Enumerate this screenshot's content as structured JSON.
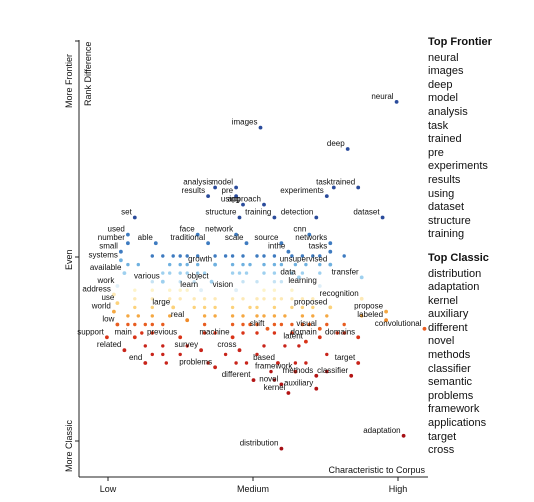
{
  "chart_data": {
    "type": "scatter",
    "y_axis": {
      "label": "Rank Difference",
      "tick_labels": [
        "More Frontier",
        "Even",
        "More Classic"
      ]
    },
    "x_axis": {
      "label": "Characteristic to Corpus",
      "tick_labels": [
        "Low",
        "Medium",
        "High"
      ]
    },
    "labeled_points": [
      {
        "term": "neural",
        "x": 0.91,
        "y": 0.86,
        "color": "#2a4b9b"
      },
      {
        "term": "images",
        "x": 0.52,
        "y": 0.8,
        "color": "#2a4b9b"
      },
      {
        "term": "deep",
        "x": 0.77,
        "y": 0.75,
        "color": "#2a4b9b"
      },
      {
        "term": "analysis",
        "x": 0.39,
        "y": 0.66,
        "color": "#2a4b9b"
      },
      {
        "term": "model",
        "x": 0.45,
        "y": 0.66,
        "color": "#2a4b9b"
      },
      {
        "term": "task",
        "x": 0.73,
        "y": 0.66,
        "color": "#2a4b9b"
      },
      {
        "term": "trained",
        "x": 0.8,
        "y": 0.66,
        "color": "#2a4b9b"
      },
      {
        "term": "results",
        "x": 0.37,
        "y": 0.64,
        "color": "#2a4b9b"
      },
      {
        "term": "pre",
        "x": 0.45,
        "y": 0.64,
        "color": "#2a4b9b"
      },
      {
        "term": "experiments",
        "x": 0.71,
        "y": 0.64,
        "color": "#2a4b9b"
      },
      {
        "term": "using",
        "x": 0.47,
        "y": 0.62,
        "color": "#2a4b9b"
      },
      {
        "term": "approach",
        "x": 0.53,
        "y": 0.62,
        "color": "#2a4b9b"
      },
      {
        "term": "set",
        "x": 0.16,
        "y": 0.59,
        "color": "#2a4b9b"
      },
      {
        "term": "structure",
        "x": 0.46,
        "y": 0.59,
        "color": "#2a4b9b"
      },
      {
        "term": "training",
        "x": 0.56,
        "y": 0.59,
        "color": "#2a4b9b"
      },
      {
        "term": "detection",
        "x": 0.68,
        "y": 0.59,
        "color": "#2a4b9b"
      },
      {
        "term": "dataset",
        "x": 0.87,
        "y": 0.59,
        "color": "#2a4b9b"
      },
      {
        "term": "used",
        "x": 0.14,
        "y": 0.55,
        "color": "#3e7bc0"
      },
      {
        "term": "face",
        "x": 0.34,
        "y": 0.55,
        "color": "#3e7bc0"
      },
      {
        "term": "network",
        "x": 0.45,
        "y": 0.55,
        "color": "#3e7bc0"
      },
      {
        "term": "cnn",
        "x": 0.66,
        "y": 0.55,
        "color": "#3e7bc0"
      },
      {
        "term": "number",
        "x": 0.14,
        "y": 0.53,
        "color": "#3e7bc0"
      },
      {
        "term": "able",
        "x": 0.22,
        "y": 0.53,
        "color": "#3e7bc0"
      },
      {
        "term": "traditional",
        "x": 0.37,
        "y": 0.53,
        "color": "#3e7bc0"
      },
      {
        "term": "scale",
        "x": 0.48,
        "y": 0.53,
        "color": "#3e7bc0"
      },
      {
        "term": "source",
        "x": 0.58,
        "y": 0.53,
        "color": "#3e7bc0"
      },
      {
        "term": "networks",
        "x": 0.72,
        "y": 0.53,
        "color": "#3e7bc0"
      },
      {
        "term": "small",
        "x": 0.12,
        "y": 0.51,
        "color": "#3e7bc0"
      },
      {
        "term": "inthe",
        "x": 0.6,
        "y": 0.51,
        "color": "#3e7bc0"
      },
      {
        "term": "tasks",
        "x": 0.72,
        "y": 0.51,
        "color": "#3e7bc0"
      },
      {
        "term": "systems",
        "x": 0.12,
        "y": 0.49,
        "color": "#6fb1e0"
      },
      {
        "term": "growth",
        "x": 0.39,
        "y": 0.48,
        "color": "#6fb1e0"
      },
      {
        "term": "unsupervised",
        "x": 0.72,
        "y": 0.48,
        "color": "#6fb1e0"
      },
      {
        "term": "available",
        "x": 0.13,
        "y": 0.46,
        "color": "#9ed0ef"
      },
      {
        "term": "various",
        "x": 0.24,
        "y": 0.44,
        "color": "#9ed0ef"
      },
      {
        "term": "object",
        "x": 0.38,
        "y": 0.44,
        "color": "#9ed0ef"
      },
      {
        "term": "data",
        "x": 0.63,
        "y": 0.45,
        "color": "#9ed0ef"
      },
      {
        "term": "transfer",
        "x": 0.81,
        "y": 0.45,
        "color": "#9ed0ef"
      },
      {
        "term": "work",
        "x": 0.11,
        "y": 0.43,
        "color": "#dfeff8"
      },
      {
        "term": "learn",
        "x": 0.35,
        "y": 0.42,
        "color": "#dfeff8"
      },
      {
        "term": "vision",
        "x": 0.45,
        "y": 0.42,
        "color": "#dfeff8"
      },
      {
        "term": "learning",
        "x": 0.69,
        "y": 0.43,
        "color": "#dfeff8"
      },
      {
        "term": "address",
        "x": 0.1,
        "y": 0.41,
        "color": "#fde9b5"
      },
      {
        "term": "recognition",
        "x": 0.81,
        "y": 0.4,
        "color": "#fde9b5"
      },
      {
        "term": "use",
        "x": 0.11,
        "y": 0.39,
        "color": "#fcd27b"
      },
      {
        "term": "large",
        "x": 0.27,
        "y": 0.38,
        "color": "#fcd27b"
      },
      {
        "term": "proposed",
        "x": 0.72,
        "y": 0.38,
        "color": "#fcd27b"
      },
      {
        "term": "world",
        "x": 0.1,
        "y": 0.37,
        "color": "#f5a842"
      },
      {
        "term": "propose",
        "x": 0.88,
        "y": 0.37,
        "color": "#f5a842"
      },
      {
        "term": "real",
        "x": 0.31,
        "y": 0.35,
        "color": "#f08a28"
      },
      {
        "term": "labeled",
        "x": 0.88,
        "y": 0.35,
        "color": "#f08a28"
      },
      {
        "term": "low",
        "x": 0.11,
        "y": 0.34,
        "color": "#e85d20"
      },
      {
        "term": "shift",
        "x": 0.54,
        "y": 0.33,
        "color": "#e85d20"
      },
      {
        "term": "visual",
        "x": 0.69,
        "y": 0.33,
        "color": "#e85d20"
      },
      {
        "term": "convolutional",
        "x": 0.99,
        "y": 0.33,
        "color": "#e85d20"
      },
      {
        "term": "support",
        "x": 0.08,
        "y": 0.31,
        "color": "#d93418"
      },
      {
        "term": "main",
        "x": 0.16,
        "y": 0.31,
        "color": "#d93418"
      },
      {
        "term": "previous",
        "x": 0.29,
        "y": 0.31,
        "color": "#d93418"
      },
      {
        "term": "machine",
        "x": 0.44,
        "y": 0.31,
        "color": "#d93418"
      },
      {
        "term": "domain",
        "x": 0.69,
        "y": 0.31,
        "color": "#d93418"
      },
      {
        "term": "domains",
        "x": 0.8,
        "y": 0.31,
        "color": "#d93418"
      },
      {
        "term": "latent",
        "x": 0.65,
        "y": 0.3,
        "color": "#d93418"
      },
      {
        "term": "related",
        "x": 0.13,
        "y": 0.28,
        "color": "#c8241a"
      },
      {
        "term": "survey",
        "x": 0.35,
        "y": 0.28,
        "color": "#c8241a"
      },
      {
        "term": "cross",
        "x": 0.46,
        "y": 0.28,
        "color": "#c8241a"
      },
      {
        "term": "end",
        "x": 0.19,
        "y": 0.25,
        "color": "#c8241a"
      },
      {
        "term": "based",
        "x": 0.57,
        "y": 0.25,
        "color": "#c8241a"
      },
      {
        "term": "target",
        "x": 0.8,
        "y": 0.25,
        "color": "#c8241a"
      },
      {
        "term": "problems",
        "x": 0.39,
        "y": 0.24,
        "color": "#c8241a"
      },
      {
        "term": "framework",
        "x": 0.62,
        "y": 0.23,
        "color": "#c8241a"
      },
      {
        "term": "methods",
        "x": 0.68,
        "y": 0.22,
        "color": "#b31414"
      },
      {
        "term": "classifier",
        "x": 0.78,
        "y": 0.22,
        "color": "#b31414"
      },
      {
        "term": "different",
        "x": 0.5,
        "y": 0.21,
        "color": "#b31414"
      },
      {
        "term": "novel",
        "x": 0.58,
        "y": 0.2,
        "color": "#b31414"
      },
      {
        "term": "auxiliary",
        "x": 0.68,
        "y": 0.19,
        "color": "#b31414"
      },
      {
        "term": "kernel",
        "x": 0.6,
        "y": 0.18,
        "color": "#b31414"
      },
      {
        "term": "adaptation",
        "x": 0.93,
        "y": 0.08,
        "color": "#a50f15"
      },
      {
        "term": "distribution",
        "x": 0.58,
        "y": 0.05,
        "color": "#a50f15"
      }
    ],
    "dot_rows": [
      {
        "y": 0.5,
        "color": "#3e7bc0",
        "x": [
          0.21,
          0.24,
          0.27,
          0.29,
          0.31,
          0.34,
          0.39,
          0.42,
          0.44,
          0.47,
          0.51,
          0.53,
          0.56,
          0.61,
          0.64,
          0.67,
          0.69,
          0.76
        ]
      },
      {
        "y": 0.48,
        "color": "#6fb1e0",
        "x": [
          0.14,
          0.17,
          0.26,
          0.29,
          0.31,
          0.34,
          0.44,
          0.47,
          0.49,
          0.53,
          0.56,
          0.58,
          0.62,
          0.65,
          0.69
        ]
      },
      {
        "y": 0.46,
        "color": "#9ed0ef",
        "x": [
          0.24,
          0.26,
          0.29,
          0.31,
          0.34,
          0.36,
          0.44,
          0.46,
          0.48,
          0.53,
          0.56,
          0.61,
          0.64,
          0.69
        ]
      },
      {
        "y": 0.44,
        "color": "#c6e3f4",
        "x": [
          0.21,
          0.29,
          0.33,
          0.47,
          0.51,
          0.56,
          0.58
        ]
      },
      {
        "y": 0.42,
        "color": "#fdf3c9",
        "x": [
          0.16,
          0.21,
          0.26,
          0.29,
          0.31,
          0.53,
          0.56,
          0.61
        ]
      },
      {
        "y": 0.4,
        "color": "#fde9b5",
        "x": [
          0.16,
          0.21,
          0.26,
          0.29,
          0.33,
          0.36,
          0.39,
          0.44,
          0.47,
          0.51,
          0.53,
          0.56,
          0.58,
          0.61,
          0.64,
          0.67
        ]
      },
      {
        "y": 0.38,
        "color": "#fcd27b",
        "x": [
          0.16,
          0.21,
          0.33,
          0.36,
          0.39,
          0.44,
          0.49,
          0.51,
          0.56,
          0.61,
          0.64,
          0.67
        ]
      },
      {
        "y": 0.36,
        "color": "#f5a842",
        "x": [
          0.14,
          0.17,
          0.21,
          0.26,
          0.36,
          0.39,
          0.44,
          0.47,
          0.51,
          0.53,
          0.56,
          0.59,
          0.64,
          0.67,
          0.71,
          0.81
        ]
      },
      {
        "y": 0.34,
        "color": "#e85d20",
        "x": [
          0.14,
          0.16,
          0.19,
          0.21,
          0.24,
          0.36,
          0.44,
          0.47,
          0.49,
          0.51,
          0.56,
          0.58,
          0.61,
          0.64,
          0.66,
          0.71,
          0.76
        ]
      },
      {
        "y": 0.32,
        "color": "#d93418",
        "x": [
          0.18,
          0.21,
          0.36,
          0.39,
          0.47,
          0.51,
          0.56,
          0.61,
          0.74,
          0.76
        ]
      },
      {
        "y": 0.29,
        "color": "#c8241a",
        "x": [
          0.19,
          0.24,
          0.31,
          0.53,
          0.59,
          0.63
        ]
      },
      {
        "y": 0.27,
        "color": "#c8241a",
        "x": [
          0.21,
          0.24,
          0.29,
          0.42,
          0.51,
          0.71
        ]
      },
      {
        "y": 0.25,
        "color": "#c8241a",
        "x": [
          0.25,
          0.37,
          0.45,
          0.48,
          0.62,
          0.65
        ]
      },
      {
        "y": 0.23,
        "color": "#b31414",
        "x": [
          0.55,
          0.71
        ]
      },
      {
        "y": 0.21,
        "color": "#b31414",
        "x": [
          0.56
        ]
      }
    ]
  },
  "sidebar": {
    "frontier_title": "Top Frontier",
    "frontier": [
      "neural",
      "images",
      "deep",
      "model",
      "analysis",
      "task",
      "trained",
      "pre",
      "experiments",
      "results",
      "using",
      "dataset",
      "structure",
      "training"
    ],
    "classic_title": "Top Classic",
    "classic": [
      "distribution",
      "adaptation",
      "kernel",
      "auxiliary",
      "different",
      "novel",
      "methods",
      "classifier",
      "semantic",
      "problems",
      "framework",
      "applications",
      "target",
      "cross"
    ]
  }
}
